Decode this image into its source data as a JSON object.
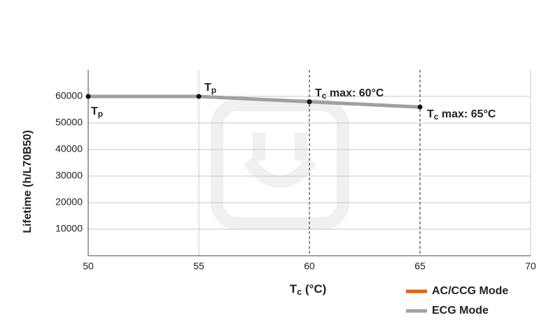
{
  "chart_data": {
    "type": "line",
    "x_label": {
      "base": "T",
      "sub": "c",
      "rest": " (°C)"
    },
    "y_label": "Lifetime (h/L70B50)",
    "x": [
      50,
      55,
      60,
      65
    ],
    "series": [
      {
        "name": "AC/CCG Mode",
        "color": "#e8630f",
        "values": [
          60000,
          null,
          58000,
          null
        ]
      },
      {
        "name": "ECG Mode",
        "color": "#a0a0a0",
        "values": [
          60000,
          60000,
          58000,
          56000
        ]
      }
    ],
    "xlim": [
      50,
      70
    ],
    "xticks": [
      50,
      55,
      60,
      65,
      70
    ],
    "ylim": [
      0,
      70000
    ],
    "yticks": [
      10000,
      20000,
      30000,
      40000,
      50000,
      60000
    ],
    "grid": true,
    "legend": "bottom-right",
    "annotations": [
      {
        "base": "T",
        "sub": "p",
        "rest": ""
      },
      {
        "base": "T",
        "sub": "p",
        "rest": ""
      },
      {
        "base": "T",
        "sub": "c",
        "rest": " max: 60°C"
      },
      {
        "base": "T",
        "sub": "c",
        "rest": " max: 65°C"
      }
    ]
  }
}
